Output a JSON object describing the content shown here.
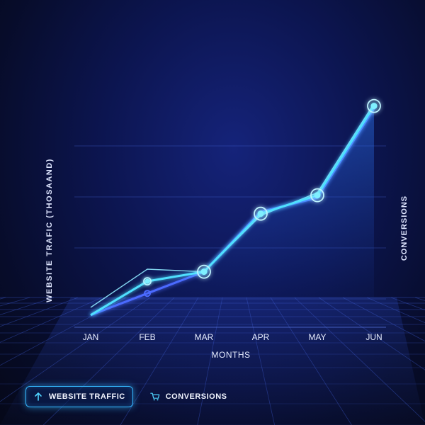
{
  "chart_data": {
    "type": "line",
    "categories": [
      "JAN",
      "FEB",
      "MAR",
      "APR",
      "MAY",
      "JUN"
    ],
    "series": [
      {
        "name": "WEBSITE TRAFFIC",
        "values": [
          10,
          40,
          38,
          82,
          100,
          170
        ]
      },
      {
        "name": "CONVERSIONS",
        "values": [
          4,
          21,
          38,
          85,
          96,
          166
        ]
      }
    ],
    "xlabel": "MONTHS",
    "ylabel": "WEBSITE TRAFIC (THOSAAND)",
    "ylabel_right": "CONVERSIONS",
    "ylim": [
      0,
      200
    ],
    "grid": true,
    "legend_position": "bottom-left",
    "colors": {
      "traffic": "#4fe0ff",
      "traffic_thin": "#8fe9ff",
      "conversions": "#4b6bff",
      "grid": "#3a57c8",
      "background": "#0c1550"
    }
  },
  "legend": {
    "traffic_label": "WEBSITE TRAFFIC",
    "traffic_icon": "arrow-up-icon",
    "conversions_label": "CONVERSIONS",
    "conversions_icon": "shopping-cart-icon"
  }
}
